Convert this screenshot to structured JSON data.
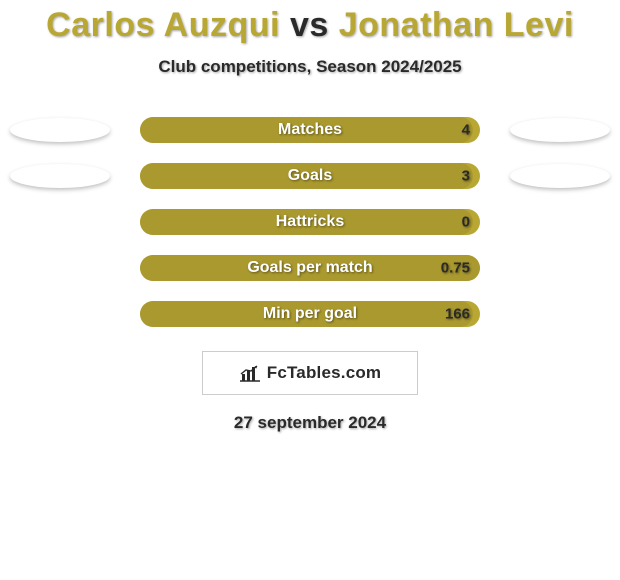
{
  "title": {
    "player_a": "Carlos Auzqui",
    "vs": "vs",
    "player_b": "Jonathan Levi",
    "color_a": "#b9a734",
    "color_vs": "#2a2a2a",
    "color_b": "#b9a734",
    "fontsize": 34
  },
  "subtitle": {
    "text": "Club competitions, Season 2024/2025",
    "color": "#2a2a2a",
    "fontsize": 17
  },
  "chart": {
    "type": "bar",
    "track_color": "#b9a734",
    "fill_color": "#aa992e",
    "side_ellipse_color": "#ffffff",
    "ellipse_width": 100,
    "ellipse_height": 24,
    "label_text_color": "#ffffff",
    "label_fontsize": 16,
    "value_text_color": "#2a2a2a",
    "value_fontsize": 15,
    "rows": [
      {
        "label": "Matches",
        "value": "4",
        "fill_pct": 98,
        "ellipse_left": true,
        "ellipse_right": true
      },
      {
        "label": "Goals",
        "value": "3",
        "fill_pct": 98,
        "ellipse_left": true,
        "ellipse_right": true
      },
      {
        "label": "Hattricks",
        "value": "0",
        "fill_pct": 98,
        "ellipse_left": false,
        "ellipse_right": false
      },
      {
        "label": "Goals per match",
        "value": "0.75",
        "fill_pct": 100,
        "ellipse_left": false,
        "ellipse_right": false
      },
      {
        "label": "Min per goal",
        "value": "166",
        "fill_pct": 98,
        "ellipse_left": false,
        "ellipse_right": false
      }
    ]
  },
  "brand": {
    "name": "FcTables.com",
    "icon": "bar-chart-icon",
    "text_color": "#2a2a2a"
  },
  "date": {
    "text": "27 september 2024",
    "color": "#2a2a2a",
    "fontsize": 17
  },
  "background_color": "#ffffff"
}
